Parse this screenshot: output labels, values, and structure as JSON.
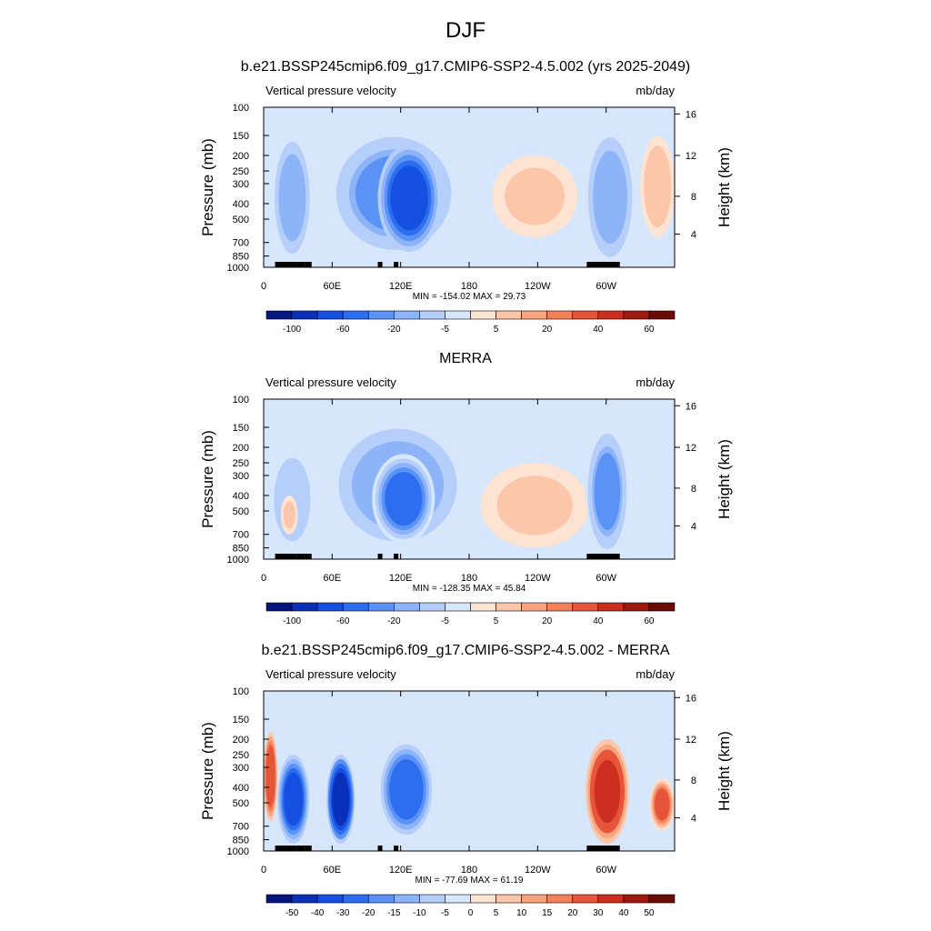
{
  "figure_title": "DJF",
  "chart_data": [
    {
      "type": "heatmap",
      "title": "b.e21.BSSP245cmip6.f09_g17.CMIP6-SSP2-4.5.002 (yrs 2025-2049)",
      "left_label": "Vertical pressure velocity",
      "right_label": "mb/day",
      "ylabel": "Pressure (mb)",
      "y2label": "Height (km)",
      "x_ticks": [
        "0",
        "60E",
        "120E",
        "180",
        "120W",
        "60W"
      ],
      "x_tick_lon": [
        0,
        60,
        120,
        180,
        240,
        300
      ],
      "xlim": [
        0,
        360
      ],
      "y_ticks": [
        "100",
        "150",
        "200",
        "250",
        "300",
        "400",
        "500",
        "700",
        "850",
        "1000"
      ],
      "y_tick_p": [
        100,
        150,
        200,
        250,
        300,
        400,
        500,
        700,
        850,
        1000
      ],
      "ylim": [
        100,
        1000
      ],
      "y_scale": "log",
      "y2_ticks": [
        "4",
        "8",
        "12",
        "16"
      ],
      "stats": "MIN = -154.02  MAX =  29.73",
      "colorbar": {
        "labels": [
          "-100",
          "-60",
          "-20",
          "-5",
          "5",
          "20",
          "40",
          "60"
        ],
        "colors": [
          "#05177e",
          "#0a2fb8",
          "#1550e0",
          "#2d6ef0",
          "#5b92f6",
          "#8db4f8",
          "#b6cffa",
          "#d6e6fb",
          "#fde3d2",
          "#fbc6aa",
          "#f8a57f",
          "#f2815a",
          "#e6553a",
          "#cc2e1f",
          "#9e1a10",
          "#6a0b06"
        ]
      },
      "regions": [
        {
          "lon": [
            8,
            42
          ],
          "p": [
            150,
            900
          ],
          "v": -40
        },
        {
          "lon": [
            58,
            170
          ],
          "p": [
            140,
            850
          ],
          "v": -50
        },
        {
          "lon": [
            100,
            155
          ],
          "p": [
            170,
            800
          ],
          "v": -85
        },
        {
          "lon": [
            200,
            275
          ],
          "p": [
            200,
            650
          ],
          "v": 22
        },
        {
          "lon": [
            282,
            325
          ],
          "p": [
            140,
            950
          ],
          "v": -45
        },
        {
          "lon": [
            330,
            360
          ],
          "p": [
            150,
            650
          ],
          "v": 26
        }
      ]
    },
    {
      "type": "heatmap",
      "title": "MERRA",
      "left_label": "Vertical pressure velocity",
      "right_label": "mb/day",
      "ylabel": "Pressure (mb)",
      "y2label": "Height (km)",
      "x_ticks": [
        "0",
        "60E",
        "120E",
        "180",
        "120W",
        "60W"
      ],
      "x_tick_lon": [
        0,
        60,
        120,
        180,
        240,
        300
      ],
      "xlim": [
        0,
        360
      ],
      "y_ticks": [
        "100",
        "150",
        "200",
        "250",
        "300",
        "400",
        "500",
        "700",
        "850",
        "1000"
      ],
      "y_tick_p": [
        100,
        150,
        200,
        250,
        300,
        400,
        500,
        700,
        850,
        1000
      ],
      "ylim": [
        100,
        1000
      ],
      "y_scale": "log",
      "y2_ticks": [
        "4",
        "8",
        "12",
        "16"
      ],
      "stats": "MIN = -128.35  MAX =  45.84",
      "colorbar": {
        "labels": [
          "-100",
          "-60",
          "-20",
          "-5",
          "5",
          "20",
          "40",
          "60"
        ],
        "colors": [
          "#05177e",
          "#0a2fb8",
          "#1550e0",
          "#2d6ef0",
          "#5b92f6",
          "#8db4f8",
          "#b6cffa",
          "#d6e6fb",
          "#fde3d2",
          "#fbc6aa",
          "#f8a57f",
          "#f2815a",
          "#e6553a",
          "#cc2e1f",
          "#9e1a10",
          "#6a0b06"
        ]
      },
      "regions": [
        {
          "lon": [
            5,
            45
          ],
          "p": [
            200,
            900
          ],
          "v": -30
        },
        {
          "lon": [
            15,
            30
          ],
          "p": [
            400,
            700
          ],
          "v": 20
        },
        {
          "lon": [
            60,
            175
          ],
          "p": [
            140,
            850
          ],
          "v": -45
        },
        {
          "lon": [
            95,
            150
          ],
          "p": [
            220,
            800
          ],
          "v": -70
        },
        {
          "lon": [
            190,
            285
          ],
          "p": [
            250,
            850
          ],
          "v": 22
        },
        {
          "lon": [
            282,
            320
          ],
          "p": [
            150,
            950
          ],
          "v": -50
        }
      ]
    },
    {
      "type": "heatmap",
      "title": "b.e21.BSSP245cmip6.f09_g17.CMIP6-SSP2-4.5.002 - MERRA",
      "left_label": "Vertical pressure velocity",
      "right_label": "mb/day",
      "ylabel": "Pressure (mb)",
      "y2label": "Height (km)",
      "x_ticks": [
        "0",
        "60E",
        "120E",
        "180",
        "120W",
        "60W"
      ],
      "x_tick_lon": [
        0,
        60,
        120,
        180,
        240,
        300
      ],
      "xlim": [
        0,
        360
      ],
      "y_ticks": [
        "100",
        "150",
        "200",
        "250",
        "300",
        "400",
        "500",
        "700",
        "850",
        "1000"
      ],
      "y_tick_p": [
        100,
        150,
        200,
        250,
        300,
        400,
        500,
        700,
        850,
        1000
      ],
      "ylim": [
        100,
        1000
      ],
      "y_scale": "log",
      "y2_ticks": [
        "4",
        "8",
        "12",
        "16"
      ],
      "stats": "MIN = -77.69  MAX =  61.19",
      "colorbar": {
        "labels": [
          "-50",
          "-40",
          "-30",
          "-20",
          "-15",
          "-10",
          "-5",
          "0",
          "5",
          "10",
          "15",
          "20",
          "30",
          "40",
          "50"
        ],
        "colors": [
          "#05177e",
          "#0a2fb8",
          "#1550e0",
          "#2d6ef0",
          "#5b92f6",
          "#8db4f8",
          "#b6cffa",
          "#d6e6fb",
          "#fde3d2",
          "#fbc6aa",
          "#f8a57f",
          "#f2815a",
          "#e6553a",
          "#cc2e1f",
          "#9e1a10",
          "#6a0b06"
        ]
      },
      "regions": [
        {
          "lon": [
            0,
            12
          ],
          "p": [
            180,
            650
          ],
          "v": 30
        },
        {
          "lon": [
            12,
            40
          ],
          "p": [
            250,
            900
          ],
          "v": -30
        },
        {
          "lon": [
            55,
            80
          ],
          "p": [
            250,
            900
          ],
          "v": -45
        },
        {
          "lon": [
            100,
            150
          ],
          "p": [
            200,
            850
          ],
          "v": -20
        },
        {
          "lon": [
            282,
            320
          ],
          "p": [
            200,
            900
          ],
          "v": 35
        },
        {
          "lon": [
            338,
            360
          ],
          "p": [
            350,
            750
          ],
          "v": 25
        }
      ]
    }
  ]
}
